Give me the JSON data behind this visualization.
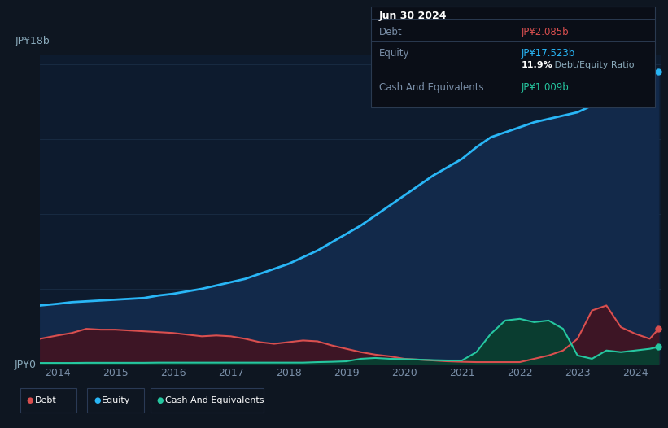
{
  "bg_color": "#0e1621",
  "plot_bg_color": "#0d1b2e",
  "grid_color": "#1a2e45",
  "tooltip": {
    "date": "Jun 30 2024",
    "debt_label": "Debt",
    "debt_value": "JP¥2.085b",
    "equity_label": "Equity",
    "equity_value": "JP¥17.523b",
    "ratio_bold": "11.9%",
    "ratio_rest": " Debt/Equity Ratio",
    "cash_label": "Cash And Equivalents",
    "cash_value": "JP¥1.009b"
  },
  "ylabel_top": "JP¥18b",
  "ylabel_bottom": "JP¥0",
  "debt_color": "#d94f4f",
  "equity_color": "#29b6f6",
  "cash_color": "#26c6a0",
  "equity_fill": "#12294a",
  "debt_fill": "#3d1525",
  "cash_fill": "#0a3d30",
  "legend": [
    {
      "label": "Debt",
      "color": "#d94f4f"
    },
    {
      "label": "Equity",
      "color": "#29b6f6"
    },
    {
      "label": "Cash And Equivalents",
      "color": "#26c6a0"
    }
  ],
  "years": [
    2013.7,
    2014.0,
    2014.25,
    2014.5,
    2014.75,
    2015.0,
    2015.25,
    2015.5,
    2015.75,
    2016.0,
    2016.25,
    2016.5,
    2016.75,
    2017.0,
    2017.25,
    2017.5,
    2017.75,
    2018.0,
    2018.25,
    2018.5,
    2018.75,
    2019.0,
    2019.25,
    2019.5,
    2019.75,
    2020.0,
    2020.25,
    2020.5,
    2020.75,
    2021.0,
    2021.25,
    2021.5,
    2021.75,
    2022.0,
    2022.25,
    2022.5,
    2022.75,
    2023.0,
    2023.25,
    2023.5,
    2023.75,
    2024.0,
    2024.25,
    2024.4
  ],
  "equity": [
    3.5,
    3.6,
    3.7,
    3.75,
    3.8,
    3.85,
    3.9,
    3.95,
    4.1,
    4.2,
    4.35,
    4.5,
    4.7,
    4.9,
    5.1,
    5.4,
    5.7,
    6.0,
    6.4,
    6.8,
    7.3,
    7.8,
    8.3,
    8.9,
    9.5,
    10.1,
    10.7,
    11.3,
    11.8,
    12.3,
    13.0,
    13.6,
    13.9,
    14.2,
    14.5,
    14.7,
    14.9,
    15.1,
    15.5,
    16.0,
    16.6,
    17.0,
    17.3,
    17.523
  ],
  "debt": [
    1.5,
    1.7,
    1.85,
    2.1,
    2.05,
    2.05,
    2.0,
    1.95,
    1.9,
    1.85,
    1.75,
    1.65,
    1.7,
    1.65,
    1.5,
    1.3,
    1.2,
    1.3,
    1.4,
    1.35,
    1.1,
    0.9,
    0.7,
    0.55,
    0.45,
    0.3,
    0.25,
    0.2,
    0.15,
    0.12,
    0.1,
    0.1,
    0.1,
    0.1,
    0.3,
    0.5,
    0.8,
    1.5,
    3.2,
    3.5,
    2.2,
    1.8,
    1.5,
    2.085
  ],
  "cash": [
    0.05,
    0.05,
    0.05,
    0.06,
    0.06,
    0.06,
    0.06,
    0.06,
    0.07,
    0.07,
    0.07,
    0.07,
    0.07,
    0.07,
    0.07,
    0.07,
    0.07,
    0.07,
    0.07,
    0.1,
    0.12,
    0.15,
    0.3,
    0.35,
    0.3,
    0.28,
    0.25,
    0.22,
    0.2,
    0.2,
    0.7,
    1.8,
    2.6,
    2.7,
    2.5,
    2.6,
    2.1,
    0.5,
    0.3,
    0.8,
    0.7,
    0.8,
    0.9,
    1.009
  ]
}
